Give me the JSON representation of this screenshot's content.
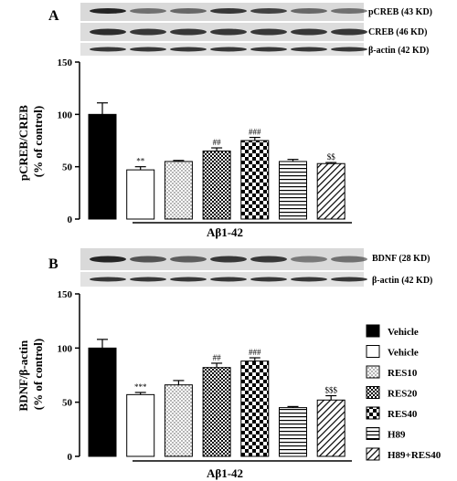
{
  "colors": {
    "ink": "#000000",
    "paper": "#ffffff",
    "blot_bg": "#d9d9d9",
    "band": "#1a1a1a"
  },
  "chart_data": [
    {
      "type": "bar",
      "panel_label": "A",
      "blot_labels": [
        "pCREB (43 KD)",
        "CREB (46 KD)",
        "β-actin (42 KD)"
      ],
      "ylabel": [
        "pCREB/CREB",
        "(% of control)"
      ],
      "ylim": [
        0,
        150
      ],
      "yticks": [
        0,
        50,
        100,
        150
      ],
      "xlabel": "Aβ1-42",
      "series": [
        {
          "category": "Vehicle",
          "value": 100,
          "error": 11,
          "sig": "",
          "pattern": "solid"
        },
        {
          "category": "Vehicle",
          "value": 47,
          "error": 3,
          "sig": "**",
          "pattern": "white"
        },
        {
          "category": "RES10",
          "value": 55,
          "error": 1,
          "sig": "",
          "pattern": "dots"
        },
        {
          "category": "RES20",
          "value": 65,
          "error": 3,
          "sig": "##",
          "pattern": "grid"
        },
        {
          "category": "RES40",
          "value": 75,
          "error": 3,
          "sig": "###",
          "pattern": "checker"
        },
        {
          "category": "H89",
          "value": 55,
          "error": 2,
          "sig": "",
          "pattern": "hlines"
        },
        {
          "category": "H89+RES40",
          "value": 53,
          "error": 1,
          "sig": "$$",
          "pattern": "diag"
        }
      ]
    },
    {
      "type": "bar",
      "panel_label": "B",
      "blot_labels": [
        "BDNF (28 KD)",
        "β-actin (42 KD)"
      ],
      "ylabel": [
        "BDNF/β-actin",
        "(% of control)"
      ],
      "ylim": [
        0,
        150
      ],
      "yticks": [
        0,
        50,
        100,
        150
      ],
      "xlabel": "Aβ1-42",
      "series": [
        {
          "category": "Vehicle",
          "value": 100,
          "error": 8,
          "sig": "",
          "pattern": "solid"
        },
        {
          "category": "Vehicle",
          "value": 57,
          "error": 2,
          "sig": "***",
          "pattern": "white"
        },
        {
          "category": "RES10",
          "value": 66,
          "error": 4,
          "sig": "",
          "pattern": "dots"
        },
        {
          "category": "RES20",
          "value": 82,
          "error": 4,
          "sig": "##",
          "pattern": "grid"
        },
        {
          "category": "RES40",
          "value": 88,
          "error": 3,
          "sig": "###",
          "pattern": "checker"
        },
        {
          "category": "H89",
          "value": 45,
          "error": 1,
          "sig": "",
          "pattern": "hlines"
        },
        {
          "category": "H89+RES40",
          "value": 52,
          "error": 4,
          "sig": "$$$",
          "pattern": "diag"
        }
      ]
    }
  ],
  "legend": [
    {
      "label": "Vehicle",
      "pattern": "solid"
    },
    {
      "label": "Vehicle",
      "pattern": "white"
    },
    {
      "label": "RES10",
      "pattern": "dots"
    },
    {
      "label": "RES20",
      "pattern": "grid"
    },
    {
      "label": "RES40",
      "pattern": "checker"
    },
    {
      "label": "H89",
      "pattern": "hlines"
    },
    {
      "label": "H89+RES40",
      "pattern": "diag"
    }
  ]
}
